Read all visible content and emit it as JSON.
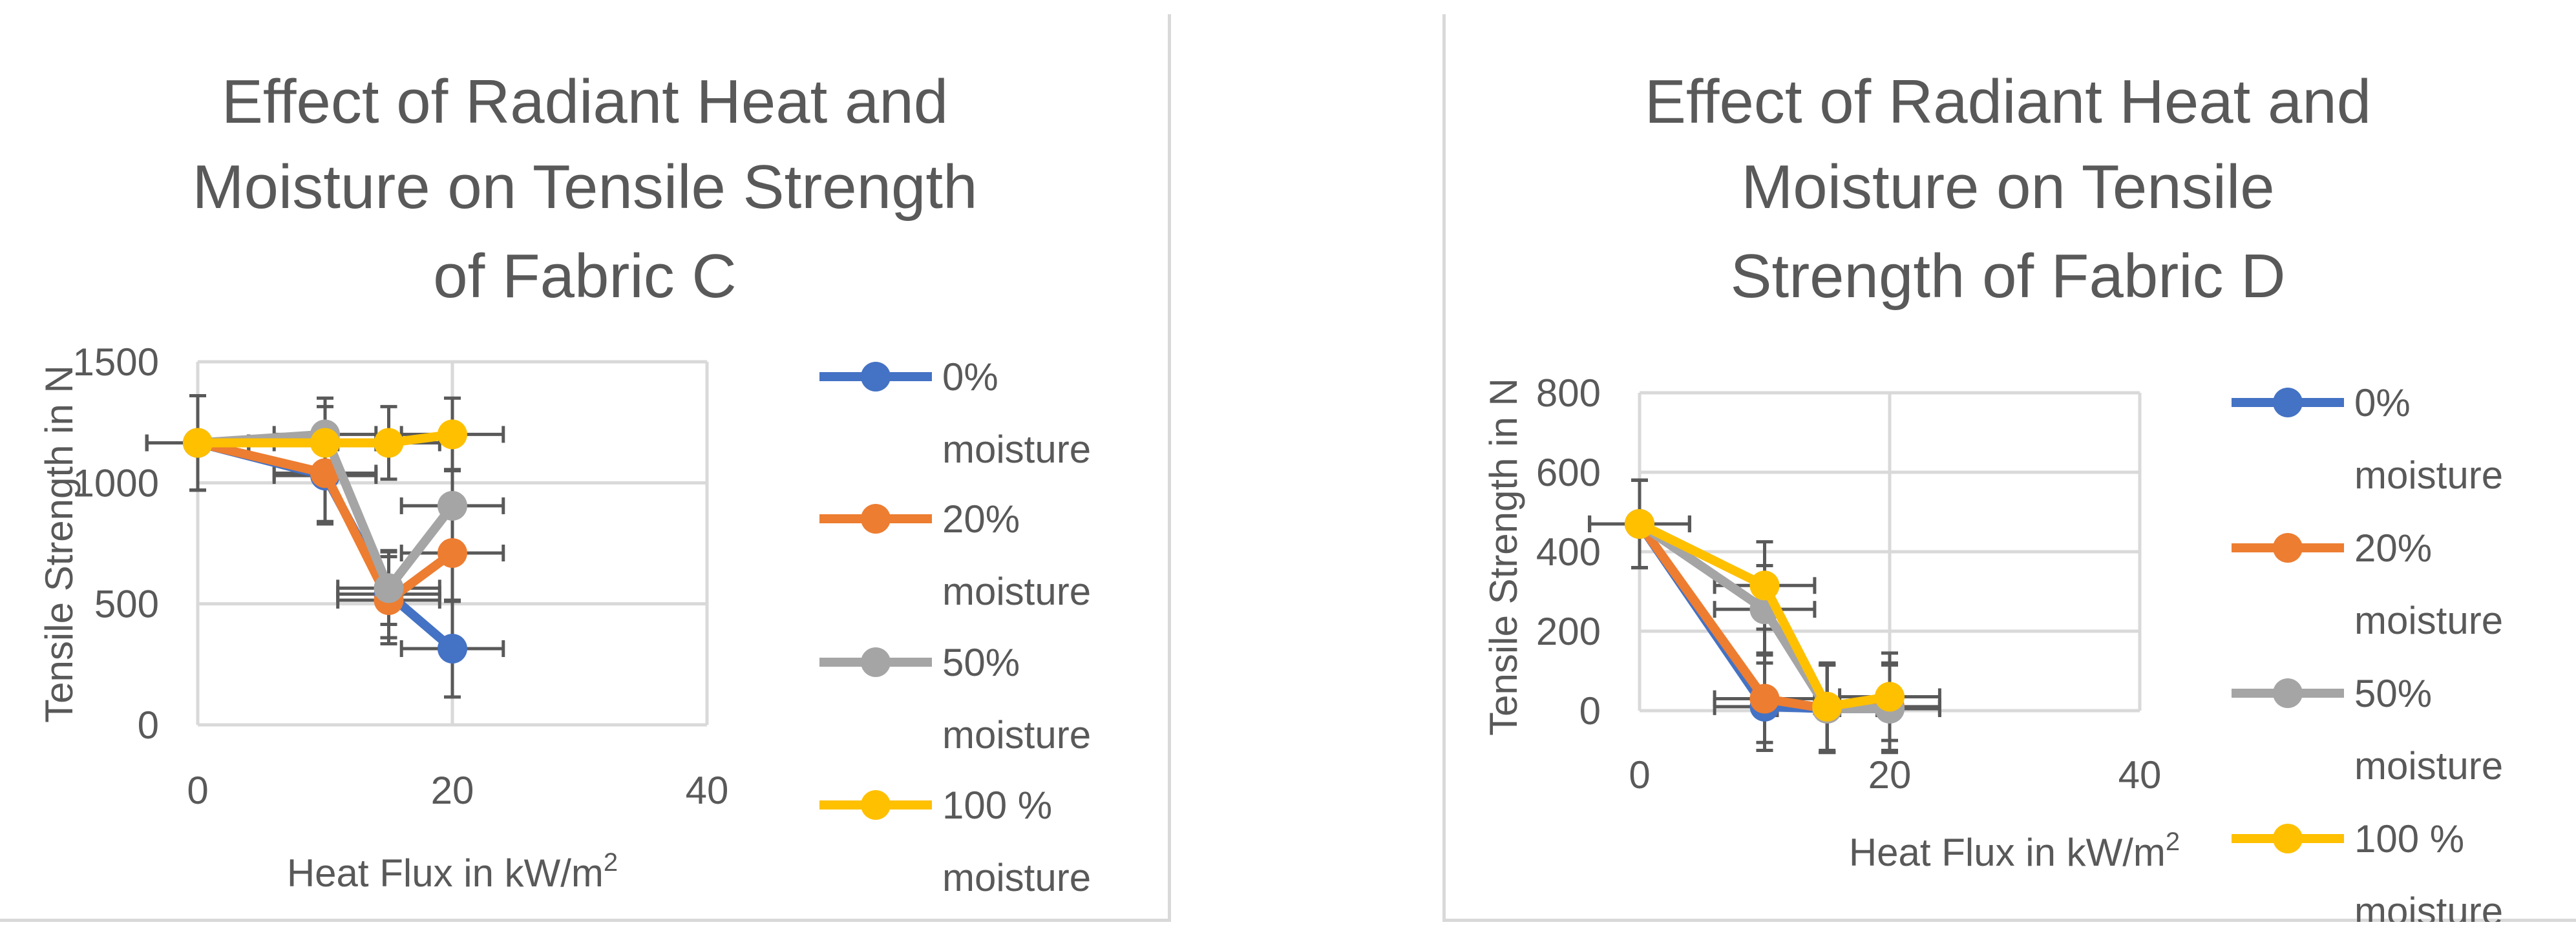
{
  "chart_data": [
    {
      "type": "line",
      "title_lines": [
        "Effect of Radiant Heat and",
        "Moisture on Tensile Strength",
        "of Fabric C"
      ],
      "xlabel": "Heat Flux in kW/m",
      "xlabel_sup": "2",
      "ylabel": "Tensile Strength in N",
      "xlim": [
        0,
        40
      ],
      "ylim": [
        0,
        1500
      ],
      "xticks": [
        0,
        20,
        40
      ],
      "yticks": [
        0,
        500,
        1000,
        1500
      ],
      "x_gridlines": [
        0,
        20,
        40
      ],
      "y_gridlines": [
        0,
        500,
        1000,
        1500
      ],
      "x_error": 4,
      "legend_position": "right",
      "series": [
        {
          "name_lines": [
            "0%",
            "moisture"
          ],
          "color": "#4472c4",
          "x": [
            0,
            10,
            15,
            20
          ],
          "y": [
            1165,
            1030,
            540,
            315
          ],
          "y_error": [
            195,
            200,
            180,
            200
          ]
        },
        {
          "name_lines": [
            "20%",
            "moisture"
          ],
          "color": "#ed7d31",
          "x": [
            0,
            10,
            15,
            20
          ],
          "y": [
            1165,
            1040,
            515,
            710
          ],
          "y_error": [
            195,
            200,
            180,
            200
          ]
        },
        {
          "name_lines": [
            "50%",
            "moisture"
          ],
          "color": "#a5a5a5",
          "x": [
            0,
            10,
            15,
            20
          ],
          "y": [
            1165,
            1200,
            565,
            905
          ],
          "y_error": [
            195,
            150,
            150,
            150
          ]
        },
        {
          "name_lines": [
            "100 %",
            "moisture"
          ],
          "color": "#ffc000",
          "x": [
            0,
            10,
            15,
            20
          ],
          "y": [
            1165,
            1165,
            1165,
            1200
          ],
          "y_error": [
            195,
            150,
            150,
            150
          ]
        }
      ]
    },
    {
      "type": "line",
      "title_lines": [
        "Effect of Radiant Heat and",
        "Moisture on Tensile",
        "Strength of Fabric D"
      ],
      "xlabel": "Heat Flux in kW/m",
      "xlabel_sup": "2",
      "ylabel": "Tensile Strength in N",
      "xlim": [
        0,
        40
      ],
      "ylim": [
        0,
        800
      ],
      "xticks": [
        0,
        20,
        40
      ],
      "yticks": [
        0,
        200,
        400,
        600,
        800
      ],
      "x_gridlines": [
        0,
        20,
        40
      ],
      "y_gridlines": [
        0,
        200,
        400,
        600,
        800
      ],
      "x_error": 4,
      "legend_position": "right",
      "series": [
        {
          "name_lines": [
            "0%",
            "moisture"
          ],
          "color": "#4472c4",
          "x": [
            0,
            10,
            15,
            20
          ],
          "y": [
            470,
            10,
            5,
            5
          ],
          "y_error": [
            110,
            110,
            110,
            110
          ]
        },
        {
          "name_lines": [
            "20%",
            "moisture"
          ],
          "color": "#ed7d31",
          "x": [
            0,
            10,
            15,
            20
          ],
          "y": [
            470,
            30,
            5,
            10
          ],
          "y_error": [
            110,
            110,
            110,
            110
          ]
        },
        {
          "name_lines": [
            "50%",
            "moisture"
          ],
          "color": "#a5a5a5",
          "x": [
            0,
            10,
            15,
            20
          ],
          "y": [
            470,
            255,
            5,
            5
          ],
          "y_error": [
            110,
            110,
            110,
            110
          ]
        },
        {
          "name_lines": [
            "100 %",
            "moisture"
          ],
          "color": "#ffc000",
          "x": [
            0,
            10,
            15,
            20
          ],
          "y": [
            470,
            315,
            10,
            35
          ],
          "y_error": [
            110,
            110,
            110,
            110
          ]
        }
      ]
    }
  ]
}
